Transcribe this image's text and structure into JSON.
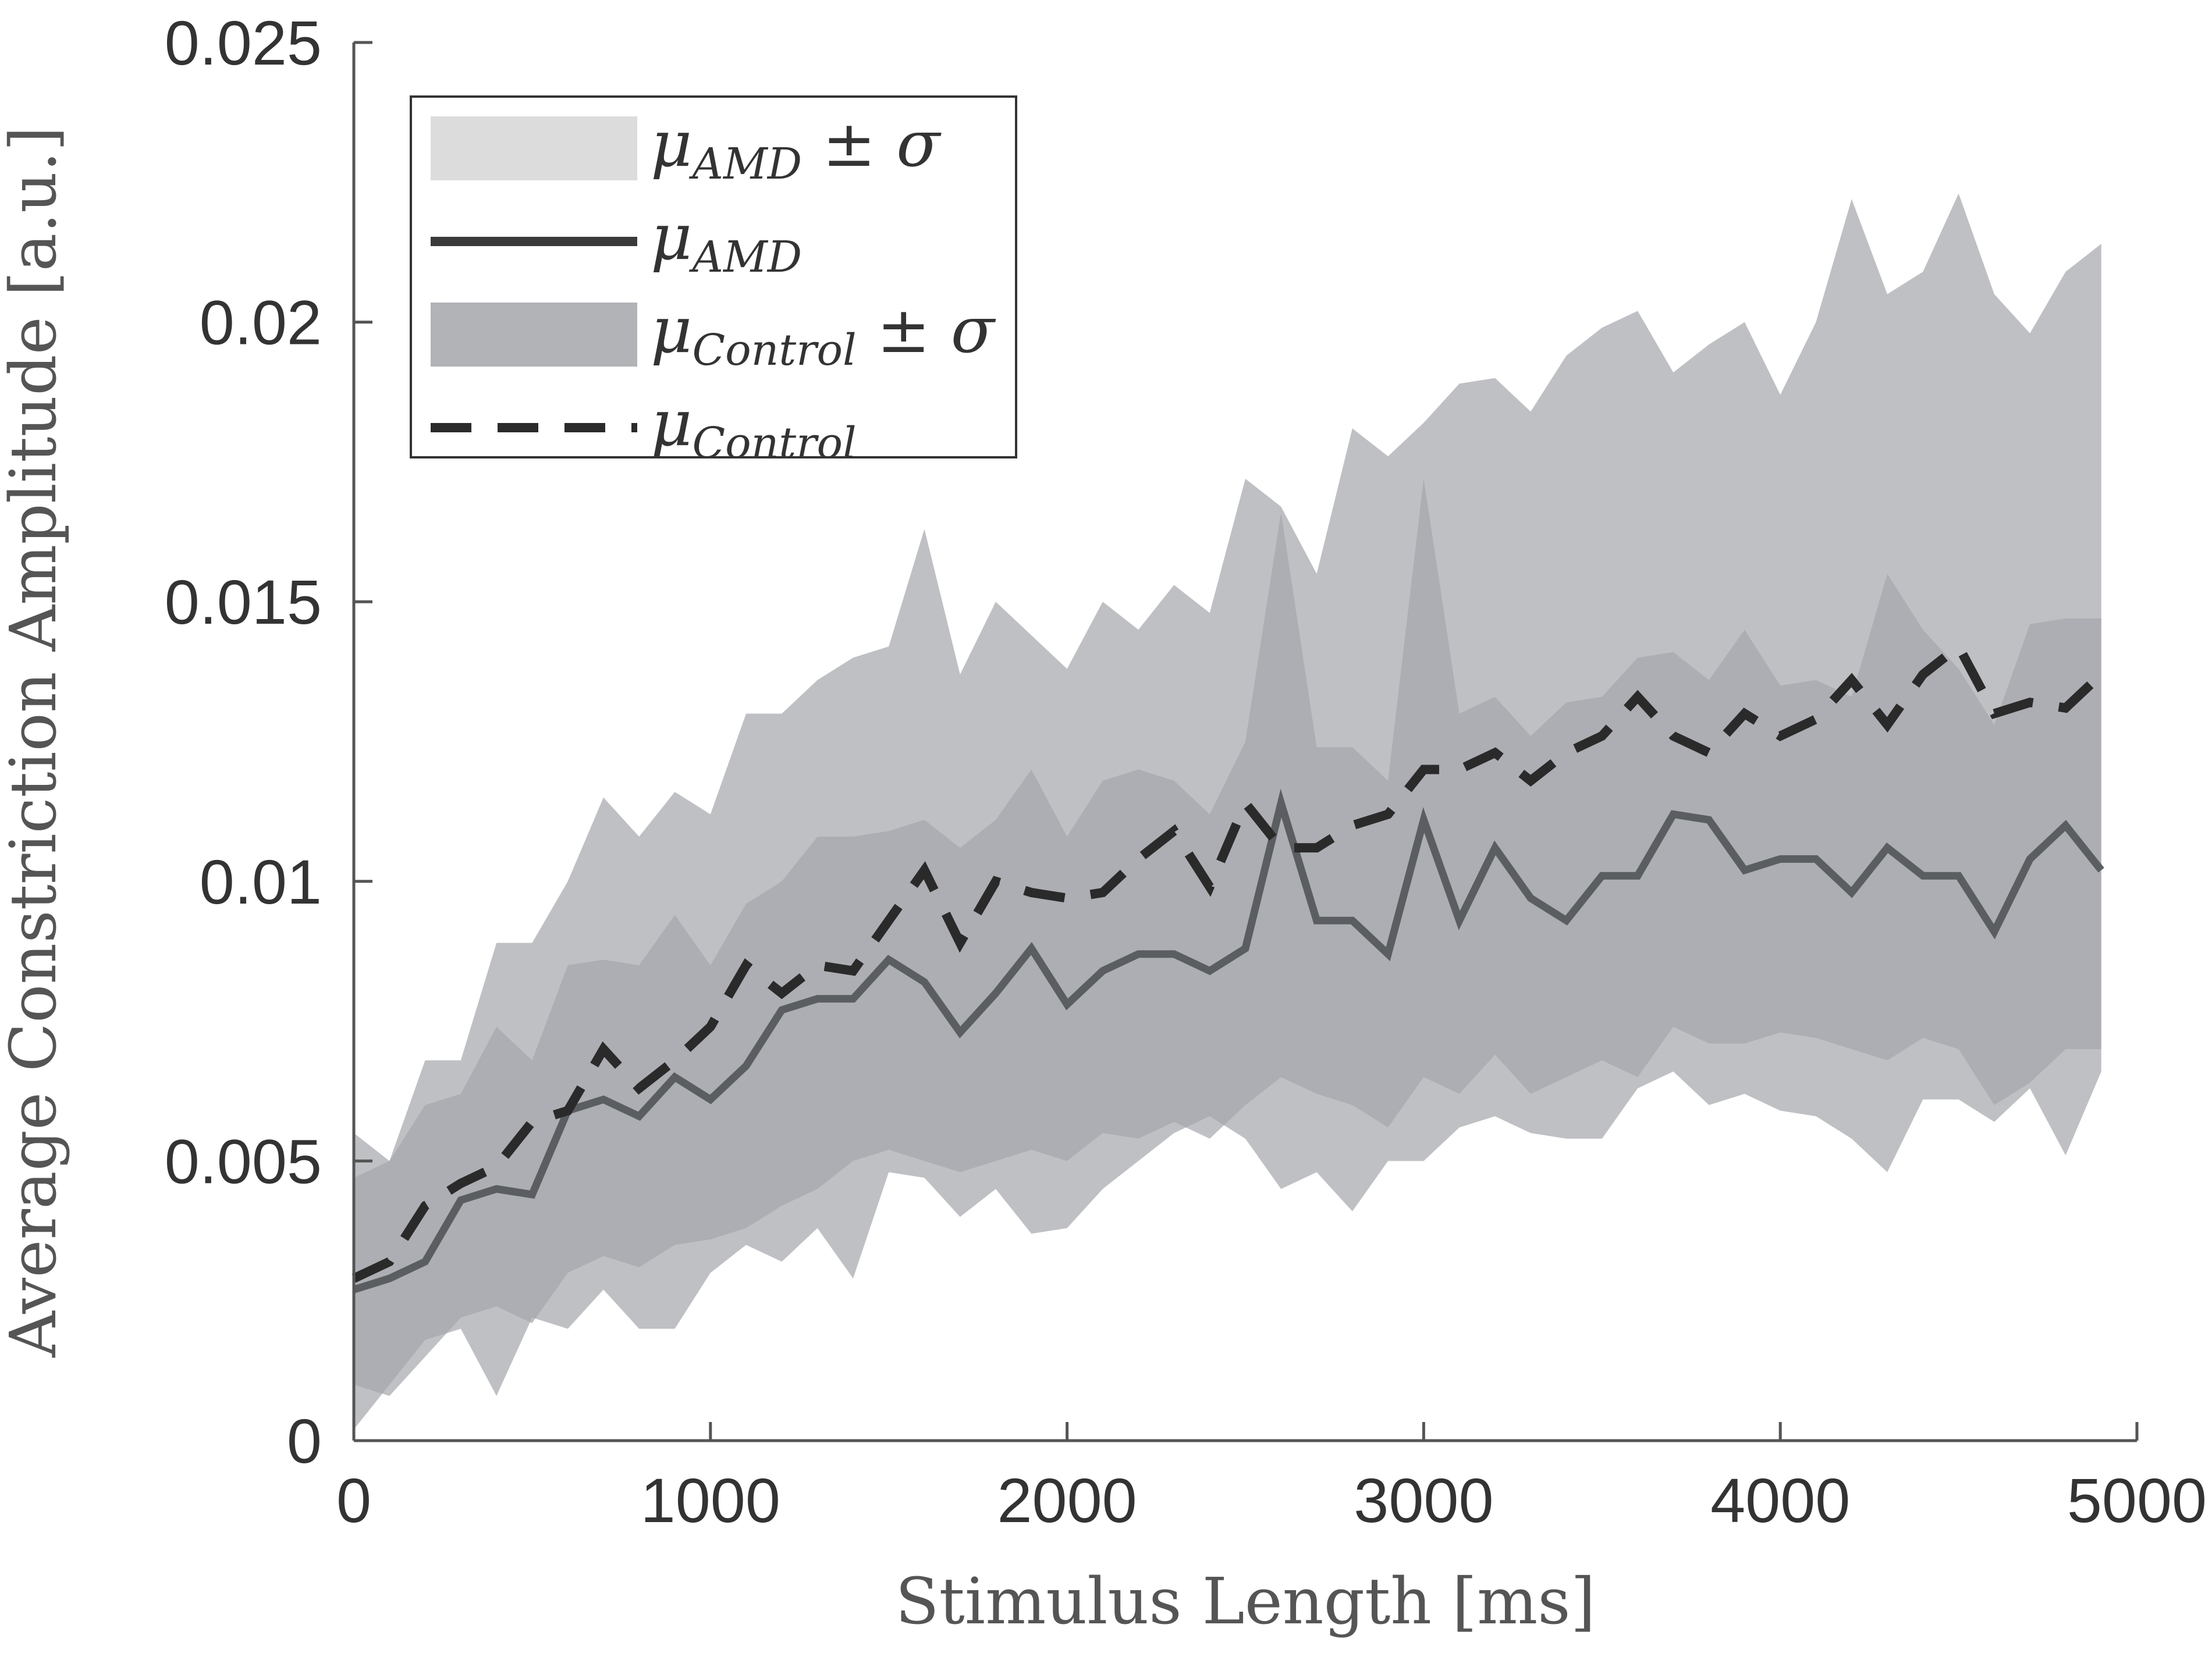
{
  "chart_data": {
    "type": "line",
    "title": "",
    "xlabel": "Stimulus Length [ms]",
    "ylabel": "Average Constriction Amplitude [a.u.]",
    "xlim": [
      0,
      5000
    ],
    "ylim": [
      0,
      0.025
    ],
    "xticks": [
      0,
      1000,
      2000,
      3000,
      4000,
      5000
    ],
    "xtick_labels": [
      "0",
      "1000",
      "2000",
      "3000",
      "4000",
      "5000"
    ],
    "yticks": [
      0,
      0.005,
      0.01,
      0.015,
      0.02,
      0.025
    ],
    "ytick_labels": [
      "0",
      "0.005",
      "0.01",
      "0.015",
      "0.02",
      "0.025"
    ],
    "grid": false,
    "legend_position": "top-left",
    "x": [
      0,
      100,
      200,
      300,
      400,
      500,
      600,
      700,
      800,
      900,
      1000,
      1100,
      1200,
      1300,
      1400,
      1500,
      1600,
      1700,
      1800,
      1900,
      2000,
      2100,
      2200,
      2300,
      2400,
      2500,
      2600,
      2700,
      2800,
      2900,
      3000,
      3100,
      3200,
      3300,
      3400,
      3500,
      3600,
      3700,
      3800,
      3900,
      4000,
      4100,
      4200,
      4300,
      4400,
      4500,
      4600,
      4700,
      4800,
      4900
    ],
    "series": [
      {
        "name": "μ_Control ± σ",
        "kind": "band",
        "color": "#bfc0c3",
        "opacity": 1,
        "upper": [
          0.0055,
          0.005,
          0.0068,
          0.0068,
          0.0089,
          0.0089,
          0.01,
          0.0115,
          0.0108,
          0.0116,
          0.0112,
          0.013,
          0.013,
          0.0136,
          0.014,
          0.0142,
          0.0163,
          0.0137,
          0.015,
          0.0144,
          0.0138,
          0.015,
          0.0145,
          0.0153,
          0.0148,
          0.0172,
          0.0167,
          0.0155,
          0.0181,
          0.0176,
          0.0182,
          0.0189,
          0.019,
          0.0184,
          0.0194,
          0.0199,
          0.0202,
          0.0191,
          0.0196,
          0.02,
          0.0187,
          0.02,
          0.0222,
          0.0205,
          0.0209,
          0.0223,
          0.0205,
          0.0198,
          0.0209,
          0.0214
        ],
        "lower": [
          0.0002,
          0.001,
          0.0018,
          0.002,
          0.0008,
          0.0022,
          0.002,
          0.0027,
          0.002,
          0.002,
          0.003,
          0.0035,
          0.0032,
          0.0038,
          0.0029,
          0.0048,
          0.0047,
          0.004,
          0.0045,
          0.0037,
          0.0038,
          0.0045,
          0.005,
          0.0055,
          0.0058,
          0.0054,
          0.0045,
          0.0048,
          0.0041,
          0.005,
          0.005,
          0.0056,
          0.0058,
          0.0055,
          0.0054,
          0.0054,
          0.0063,
          0.0066,
          0.006,
          0.0062,
          0.0059,
          0.0058,
          0.0054,
          0.0048,
          0.0061,
          0.0061,
          0.0057,
          0.0063,
          0.0051,
          0.0066
        ]
      },
      {
        "name": "μ_AMD ± σ",
        "kind": "band",
        "color": "#a5a6ac",
        "opacity": 0.7,
        "upper": [
          0.0047,
          0.005,
          0.006,
          0.0062,
          0.0074,
          0.0068,
          0.0085,
          0.0086,
          0.0085,
          0.0094,
          0.0085,
          0.0096,
          0.01,
          0.0108,
          0.0108,
          0.0109,
          0.0111,
          0.0106,
          0.0111,
          0.012,
          0.0108,
          0.0118,
          0.012,
          0.0118,
          0.0112,
          0.0125,
          0.0166,
          0.0124,
          0.0124,
          0.0118,
          0.0172,
          0.013,
          0.0133,
          0.0126,
          0.0132,
          0.0133,
          0.014,
          0.0141,
          0.0136,
          0.0145,
          0.0135,
          0.0136,
          0.0133,
          0.0155,
          0.0145,
          0.0138,
          0.0128,
          0.0146,
          0.0147,
          0.0147
        ],
        "lower": [
          0.001,
          0.0008,
          0.0015,
          0.0022,
          0.0024,
          0.0021,
          0.003,
          0.0033,
          0.0031,
          0.0035,
          0.0036,
          0.0038,
          0.0042,
          0.0045,
          0.005,
          0.0052,
          0.005,
          0.0048,
          0.005,
          0.0052,
          0.005,
          0.0055,
          0.0054,
          0.0057,
          0.0054,
          0.006,
          0.0065,
          0.0062,
          0.006,
          0.0056,
          0.0065,
          0.0062,
          0.0069,
          0.0062,
          0.0065,
          0.0068,
          0.0065,
          0.0074,
          0.0071,
          0.0071,
          0.0073,
          0.0072,
          0.007,
          0.0068,
          0.0072,
          0.007,
          0.006,
          0.0064,
          0.007,
          0.007
        ]
      },
      {
        "name": "μ_AMD",
        "kind": "line",
        "style": "solid",
        "color": "#5b5e61",
        "values": [
          0.0027,
          0.0029,
          0.0032,
          0.0043,
          0.0045,
          0.0044,
          0.0059,
          0.0061,
          0.0058,
          0.0065,
          0.0061,
          0.0067,
          0.0077,
          0.0079,
          0.0079,
          0.0086,
          0.0082,
          0.0073,
          0.008,
          0.0088,
          0.0078,
          0.0084,
          0.0087,
          0.0087,
          0.0084,
          0.0088,
          0.0114,
          0.0093,
          0.0093,
          0.0087,
          0.0111,
          0.0093,
          0.0106,
          0.0097,
          0.0093,
          0.0101,
          0.0101,
          0.0112,
          0.0111,
          0.0102,
          0.0104,
          0.0104,
          0.0098,
          0.0106,
          0.0101,
          0.0101,
          0.0091,
          0.0104,
          0.011,
          0.0102
        ]
      },
      {
        "name": "μ_Control",
        "kind": "line",
        "style": "dashed",
        "color": "#2a2a2a",
        "values": [
          0.0029,
          0.0032,
          0.0042,
          0.0046,
          0.0049,
          0.0057,
          0.0059,
          0.007,
          0.0063,
          0.0068,
          0.0074,
          0.0085,
          0.008,
          0.0085,
          0.0084,
          0.0093,
          0.0102,
          0.0089,
          0.01,
          0.0098,
          0.0097,
          0.0098,
          0.0104,
          0.0109,
          0.0099,
          0.0114,
          0.0106,
          0.0106,
          0.011,
          0.0112,
          0.012,
          0.012,
          0.0123,
          0.0118,
          0.0123,
          0.0126,
          0.0133,
          0.0126,
          0.0123,
          0.013,
          0.0126,
          0.0129,
          0.0136,
          0.0128,
          0.0137,
          0.0142,
          0.013,
          0.0132,
          0.0131,
          0.0137
        ]
      }
    ],
    "legend": [
      {
        "symbol": "μ",
        "sub": "AMD",
        "suffix": " ± σ",
        "swatch": "band",
        "color": "#dcdcdd"
      },
      {
        "symbol": "μ",
        "sub": "AMD",
        "suffix": "",
        "swatch": "solid",
        "color": "#3a3a3a"
      },
      {
        "symbol": "μ",
        "sub": "Control",
        "suffix": " ± σ",
        "swatch": "band",
        "color": "#b2b3b7"
      },
      {
        "symbol": "μ",
        "sub": "Control",
        "suffix": "",
        "swatch": "dashed",
        "color": "#2a2a2a"
      }
    ]
  }
}
